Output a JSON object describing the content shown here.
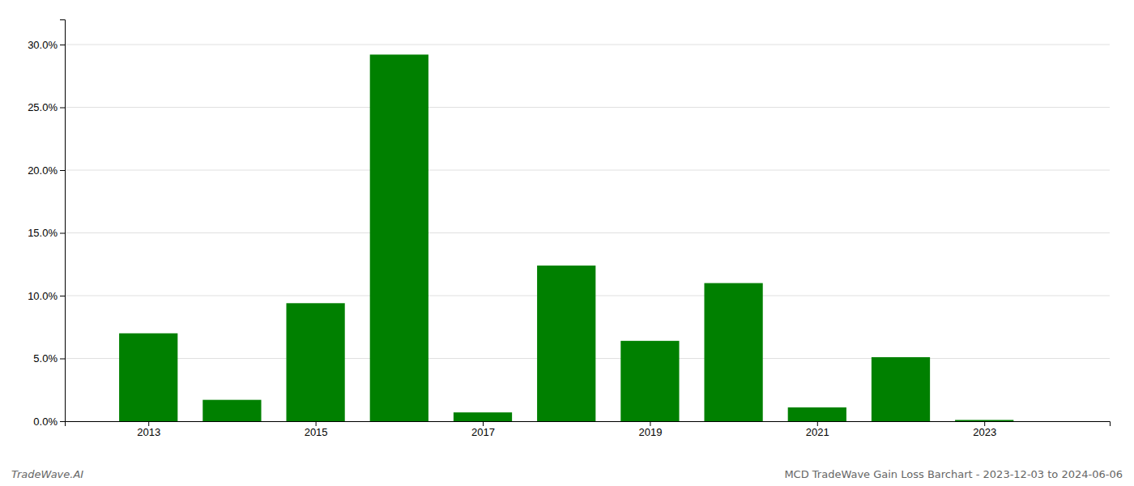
{
  "chart_data": {
    "type": "bar",
    "x": [
      2013,
      2014,
      2015,
      2016,
      2017,
      2018,
      2019,
      2020,
      2021,
      2022,
      2023
    ],
    "values": [
      0.07,
      0.017,
      0.094,
      0.292,
      0.007,
      0.124,
      0.064,
      0.11,
      0.011,
      0.051,
      0.001
    ],
    "color": "#008000",
    "xlim": [
      2012.0,
      2024.5
    ],
    "xticks": [
      2013,
      2015,
      2017,
      2019,
      2021,
      2023
    ],
    "ylim": [
      0,
      0.32
    ],
    "yticks": [
      {
        "value": 0.0,
        "label": "0.0%"
      },
      {
        "value": 0.05,
        "label": "5.0%"
      },
      {
        "value": 0.1,
        "label": "10.0%"
      },
      {
        "value": 0.15,
        "label": "15.0%"
      },
      {
        "value": 0.2,
        "label": "20.0%"
      },
      {
        "value": 0.25,
        "label": "25.0%"
      },
      {
        "value": 0.3,
        "label": "30.0%"
      }
    ],
    "grid": true,
    "annotations": [
      "TradeWave.AI",
      "MCD TradeWave Gain Loss Barchart - 2023-12-03 to 2024-06-06"
    ]
  }
}
